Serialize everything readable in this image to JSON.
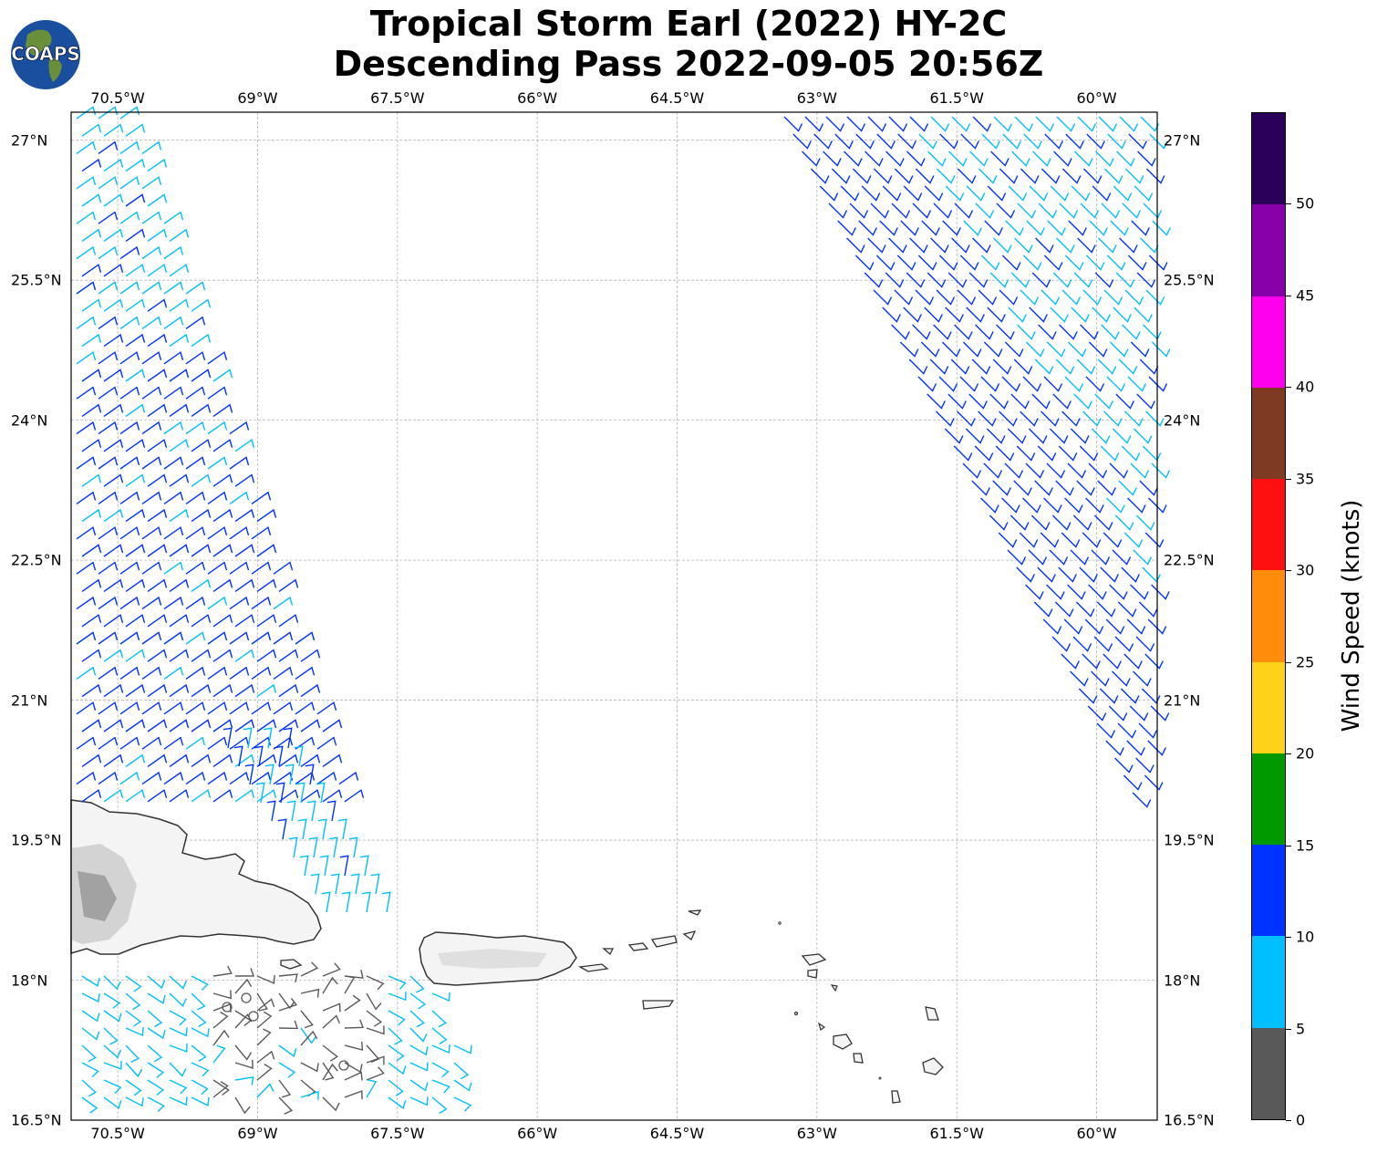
{
  "title": {
    "line1": "Tropical Storm Earl (2022) HY-2C",
    "line2": "Descending Pass 2022-09-05 20:56Z"
  },
  "logo": {
    "text": "COAPS",
    "icon": "globe-logo-icon"
  },
  "map": {
    "lon_range": [
      -71.0,
      -59.35
    ],
    "lat_range": [
      16.5,
      27.3
    ],
    "x_ticks": [
      "70.5°W",
      "69°W",
      "67.5°W",
      "66°W",
      "64.5°W",
      "63°W",
      "61.5°W",
      "60°W"
    ],
    "y_ticks": [
      "27°N",
      "25.5°N",
      "24°N",
      "22.5°N",
      "21°N",
      "19.5°N",
      "18°N",
      "16.5°N"
    ],
    "gridlines": true,
    "land_color": "#ffffff",
    "coast_color": "#333333"
  },
  "colorbar": {
    "label": "Wind Speed (knots)",
    "ticks": [
      "0",
      "5",
      "10",
      "15",
      "20",
      "25",
      "30",
      "35",
      "40",
      "45",
      "50"
    ],
    "bins": [
      {
        "min": 0,
        "max": 5,
        "color": "#595959"
      },
      {
        "min": 5,
        "max": 10,
        "color": "#00bfff"
      },
      {
        "min": 10,
        "max": 15,
        "color": "#0033ff"
      },
      {
        "min": 15,
        "max": 20,
        "color": "#009900"
      },
      {
        "min": 20,
        "max": 25,
        "color": "#ffd21a"
      },
      {
        "min": 25,
        "max": 30,
        "color": "#ff8c0a"
      },
      {
        "min": 30,
        "max": 35,
        "color": "#ff1010"
      },
      {
        "min": 35,
        "max": 40,
        "color": "#7f3a24"
      },
      {
        "min": 40,
        "max": 45,
        "color": "#ff00ee"
      },
      {
        "min": 45,
        "max": 50,
        "color": "#8800aa"
      },
      {
        "min": 50,
        "max": 55,
        "color": "#2a005a"
      }
    ]
  }
}
